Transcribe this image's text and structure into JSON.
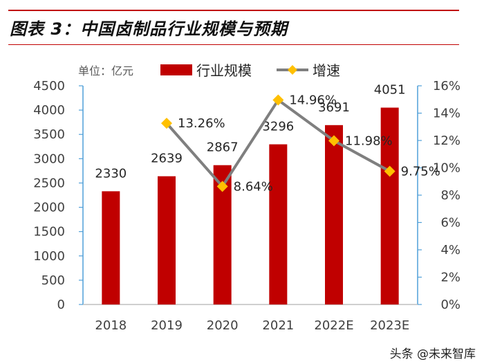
{
  "title": "图表 3：中国卤制品行业规模与预期",
  "watermark": "头条 @未来智库",
  "chart_data": {
    "type": "bar",
    "unit_label": "单位：亿元",
    "categories": [
      "2018",
      "2019",
      "2020",
      "2021",
      "2022E",
      "2023E"
    ],
    "series": [
      {
        "name": "行业规模",
        "type": "bar",
        "axis": "left",
        "color": "#c00000",
        "values": [
          2330,
          2639,
          2867,
          3296,
          3691,
          4051
        ],
        "labels": [
          "2330",
          "2639",
          "2867",
          "3296",
          "3691",
          "4051"
        ]
      },
      {
        "name": "增速",
        "type": "line",
        "axis": "right",
        "line_color": "#7f7f7f",
        "marker_color": "#ffc000",
        "values": [
          null,
          13.26,
          8.64,
          14.96,
          11.98,
          9.75
        ],
        "labels": [
          null,
          "13.26%",
          "8.64%",
          "14.96%",
          "11.98%",
          "9.75%"
        ]
      }
    ],
    "ylim_left": [
      0,
      4500
    ],
    "yticks_left": [
      "0",
      "500",
      "1000",
      "1500",
      "2000",
      "2500",
      "3000",
      "3500",
      "4000",
      "4500"
    ],
    "ylim_right": [
      0,
      16
    ],
    "yticks_right": [
      "0%",
      "2%",
      "4%",
      "6%",
      "8%",
      "10%",
      "12%",
      "14%",
      "16%"
    ],
    "legend_position": "top"
  }
}
